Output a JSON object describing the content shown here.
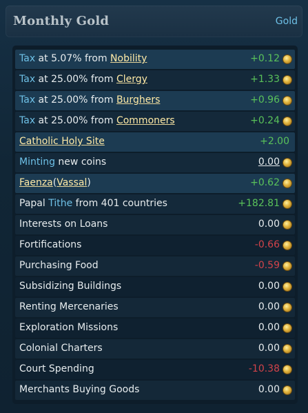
{
  "header": {
    "title": "Monthly Gold",
    "currency_label": "Gold"
  },
  "colors": {
    "positive": "#5ac25a",
    "negative": "#d2434a",
    "keyword": "#6ec0e6",
    "link": "#ffeaa6"
  },
  "rows": [
    {
      "kw": "Tax",
      "pre": " at 5.07% from ",
      "link": "Nobility",
      "value": "+0.12",
      "icon": "gold-coin-icon"
    },
    {
      "kw": "Tax",
      "pre": " at 25.00% from ",
      "link": "Clergy",
      "value": "+1.33",
      "icon": "gold-coin-icon"
    },
    {
      "kw": "Tax",
      "pre": " at 25.00% from ",
      "link": "Burghers",
      "value": "+0.96",
      "icon": "gold-coin-icon"
    },
    {
      "kw": "Tax",
      "pre": " at 25.00% from ",
      "link": "Commoners",
      "value": "+0.24",
      "icon": "gold-coin-icon"
    },
    {
      "link": "Catholic Holy Site",
      "value": "+2.00"
    },
    {
      "kw": "Minting",
      "post": " new coins",
      "value": "0.00",
      "icon": "gold-coin-icon"
    },
    {
      "link_a": "Faenza",
      "paren_open": "(",
      "link_b": "Vassal",
      "paren_close": ")",
      "value": "+0.62",
      "icon": "gold-coin-icon"
    },
    {
      "pre": "Papal ",
      "kw": "Tithe",
      "post": " from 401 countries",
      "value": "+182.81",
      "icon": "gold-coin-icon"
    },
    {
      "label": "Interests on Loans",
      "value": "0.00",
      "icon": "gold-coin-icon"
    },
    {
      "label": "Fortifications",
      "value": "-0.66",
      "icon": "gold-coin-icon"
    },
    {
      "label": "Purchasing Food",
      "value": "-0.59",
      "icon": "gold-coin-icon"
    },
    {
      "label": "Subsidizing Buildings",
      "value": "0.00",
      "icon": "gold-coin-icon"
    },
    {
      "label": "Renting Mercenaries",
      "value": "0.00",
      "icon": "gold-coin-icon"
    },
    {
      "label": "Exploration Missions",
      "value": "0.00",
      "icon": "gold-coin-icon"
    },
    {
      "label": "Colonial Charters",
      "value": "0.00",
      "icon": "gold-coin-icon"
    },
    {
      "label": "Court Spending",
      "value": "-10.38",
      "icon": "gold-coin-icon"
    },
    {
      "label": "Merchants Buying Goods",
      "value": "0.00",
      "icon": "gold-coin-icon"
    }
  ]
}
